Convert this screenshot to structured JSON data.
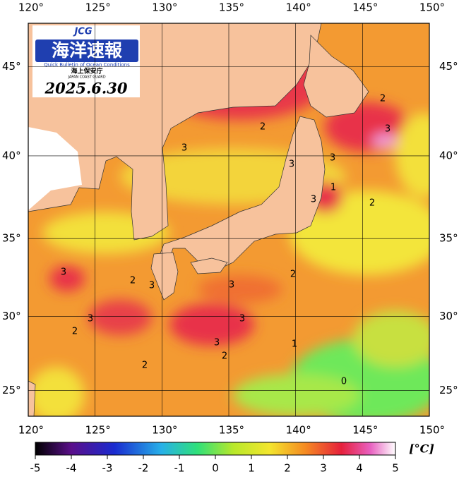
{
  "map_data": {
    "logo": {
      "mark": "JCG",
      "title": "海洋速報",
      "subtitle": "Quick Bulletin of Ocean Conditions",
      "agency": "海上保安庁",
      "agency_en": "JAPAN COAST GUARD"
    },
    "date": "2025.6.30",
    "xlim": [
      120,
      150
    ],
    "ylim": [
      23.2,
      47.3
    ],
    "lon_ticks": [
      {
        "value": 120,
        "label": "120°"
      },
      {
        "value": 125,
        "label": "125°"
      },
      {
        "value": 130,
        "label": "130°"
      },
      {
        "value": 135,
        "label": "135°"
      },
      {
        "value": 140,
        "label": "140°"
      },
      {
        "value": 145,
        "label": "145°"
      },
      {
        "value": 150,
        "label": "150°"
      }
    ],
    "lat_ticks": [
      {
        "value": 25,
        "label": "25°"
      },
      {
        "value": 30,
        "label": "30°"
      },
      {
        "value": 35,
        "label": "35°"
      },
      {
        "value": 40,
        "label": "40°"
      },
      {
        "value": 45,
        "label": "45°"
      }
    ],
    "contour_labels": [
      2,
      3,
      2,
      3,
      3,
      3,
      1,
      3,
      2,
      3,
      2,
      3,
      3,
      2,
      3,
      3,
      2,
      3,
      1,
      2,
      2,
      0
    ],
    "colorbar": {
      "lim": [
        -5,
        5
      ],
      "ticks": [
        -5,
        -4,
        -3,
        -2,
        -1,
        0,
        1,
        2,
        3,
        4,
        5
      ],
      "unit": "[°C]"
    }
  }
}
